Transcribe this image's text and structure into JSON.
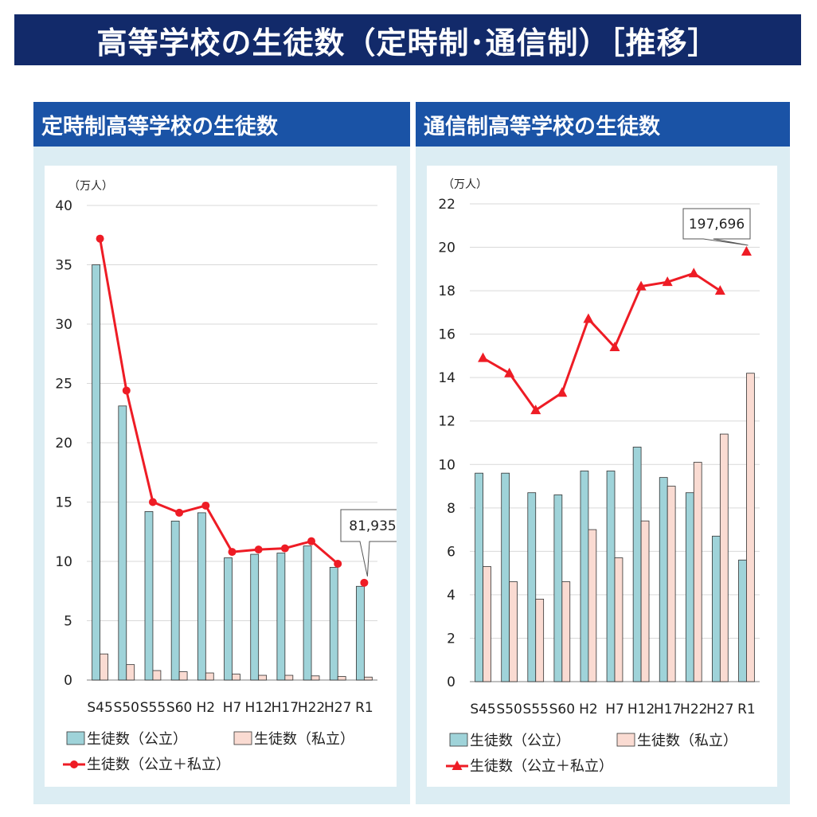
{
  "title": "高等学校の生徒数（定時制･通信制）［推移］",
  "panels": [
    {
      "heading": "定時制高等学校の生徒数",
      "chart_data": {
        "type": "bar",
        "unit": "（万人）",
        "categories": [
          "S45",
          "S50",
          "S55",
          "S60",
          "H2",
          "H7",
          "H12",
          "H17",
          "H22",
          "H27",
          "R1"
        ],
        "ylim": [
          0,
          40
        ],
        "yticks": [
          0,
          5,
          10,
          15,
          20,
          25,
          30,
          35,
          40
        ],
        "series": [
          {
            "name": "生徒数（公立）",
            "kind": "bar",
            "color": "#9fd3d9",
            "values": [
              35.0,
              23.1,
              14.2,
              13.4,
              14.1,
              10.3,
              10.6,
              10.7,
              11.3,
              9.5,
              7.9
            ]
          },
          {
            "name": "生徒数（私立）",
            "kind": "bar",
            "color": "#fadbd2",
            "values": [
              2.2,
              1.3,
              0.8,
              0.7,
              0.6,
              0.5,
              0.4,
              0.4,
              0.35,
              0.3,
              0.25
            ]
          },
          {
            "name": "生徒数（公立＋私立）",
            "kind": "line",
            "marker": "circle",
            "color": "#ee1c25",
            "values": [
              37.2,
              24.4,
              15.0,
              14.1,
              14.7,
              10.8,
              11.0,
              11.1,
              11.7,
              9.8,
              8.2
            ]
          }
        ],
        "callout": {
          "text": "81,935",
          "category_index": 10
        },
        "grid": true,
        "legend": "bottom"
      }
    },
    {
      "heading": "通信制高等学校の生徒数",
      "chart_data": {
        "type": "bar",
        "unit": "（万人）",
        "categories": [
          "S45",
          "S50",
          "S55",
          "S60",
          "H2",
          "H7",
          "H12",
          "H17",
          "H22",
          "H27",
          "R1"
        ],
        "ylim": [
          0,
          22
        ],
        "yticks": [
          0,
          2,
          4,
          6,
          8,
          10,
          12,
          14,
          16,
          18,
          20,
          22
        ],
        "series": [
          {
            "name": "生徒数（公立）",
            "kind": "bar",
            "color": "#9fd3d9",
            "values": [
              9.6,
              9.6,
              8.7,
              8.6,
              9.7,
              9.7,
              10.8,
              9.4,
              8.7,
              6.7,
              5.6
            ]
          },
          {
            "name": "生徒数（私立）",
            "kind": "bar",
            "color": "#fadbd2",
            "values": [
              5.3,
              4.6,
              3.8,
              4.6,
              7.0,
              5.7,
              7.4,
              9.0,
              10.1,
              11.4,
              14.2
            ]
          },
          {
            "name": "生徒数（公立＋私立）",
            "kind": "line",
            "marker": "triangle",
            "color": "#ee1c25",
            "values": [
              14.9,
              14.2,
              12.5,
              13.3,
              16.7,
              15.4,
              18.2,
              18.4,
              18.8,
              18.0,
              19.8
            ]
          }
        ],
        "callout": {
          "text": "197,696",
          "category_index": 10
        },
        "grid": true,
        "legend": "bottom"
      }
    }
  ]
}
